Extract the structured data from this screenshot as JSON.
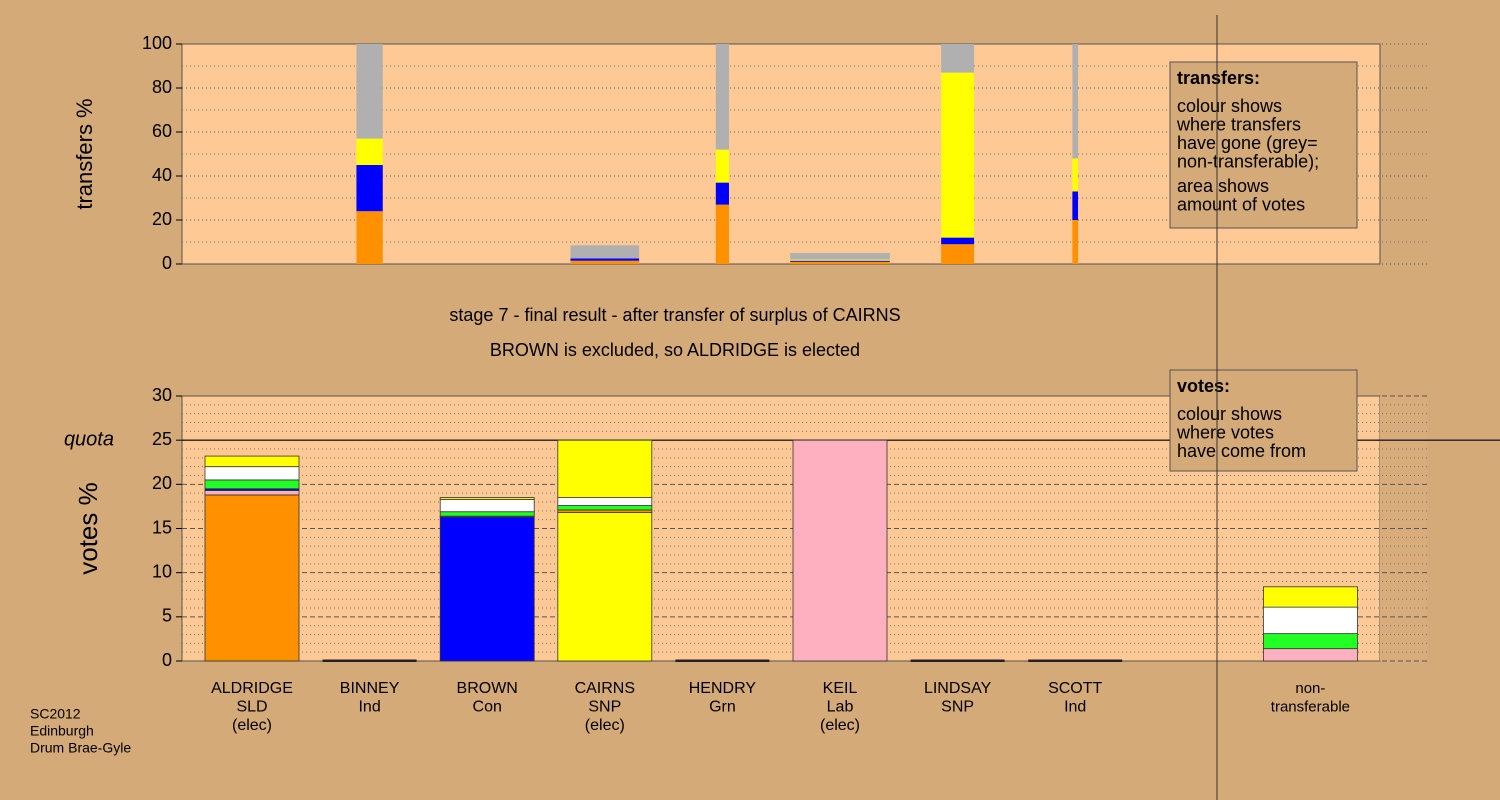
{
  "chart_data": [
    {
      "type": "stacked-bar",
      "ylabel": "transfers %",
      "ylim": [
        0,
        100
      ],
      "yticks": [
        0,
        20,
        40,
        60,
        80,
        100
      ],
      "yminor": [
        10,
        30,
        50,
        70,
        90
      ],
      "amounts": [
        null,
        2.8,
        null,
        7.3,
        1.4,
        10.6,
        3.5,
        0.6,
        null,
        null
      ],
      "series": [
        {
          "color": "#ff9000",
          "values": [
            null,
            24,
            null,
            1.5,
            27,
            1,
            9,
            20,
            null,
            null
          ]
        },
        {
          "color": "#0000ff",
          "values": [
            null,
            21,
            null,
            1,
            10,
            0.5,
            3,
            13,
            null,
            null
          ]
        },
        {
          "color": "#ffff00",
          "values": [
            null,
            12,
            null,
            0,
            15,
            0.5,
            75,
            15,
            null,
            null
          ]
        },
        {
          "color": "#b0b0b0",
          "values": [
            null,
            43,
            null,
            6,
            48,
            3,
            13,
            52,
            null,
            null
          ]
        }
      ],
      "legend": {
        "title": "transfers:",
        "lines": [
          "colour shows",
          "where transfers",
          "have gone (grey=",
          "non-transferable);",
          "area shows",
          "amount of votes"
        ]
      }
    },
    {
      "type": "stacked-bar",
      "ylabel": "votes %",
      "title": "stage 7 - final result - after transfer of surplus of CAIRNS",
      "subtitle": "BROWN is excluded, so ALDRIDGE is elected",
      "ylim": [
        0,
        30
      ],
      "yticks": [
        0,
        5,
        10,
        15,
        20,
        25,
        30
      ],
      "yminor": [
        1,
        2,
        3,
        4,
        6,
        7,
        8,
        9,
        11,
        12,
        13,
        14,
        16,
        17,
        18,
        19,
        21,
        22,
        23,
        24,
        26,
        27,
        28,
        29
      ],
      "quota": 25,
      "quota_label": "quota",
      "categories": [
        [
          "ALDRIDGE",
          "SLD",
          "(elec)"
        ],
        [
          "BINNEY",
          "Ind"
        ],
        [
          "BROWN",
          "Con"
        ],
        [
          "CAIRNS",
          "SNP",
          "(elec)"
        ],
        [
          "HENDRY",
          "Grn"
        ],
        [
          "KEIL",
          "Lab",
          "(elec)"
        ],
        [
          "LINDSAY",
          "SNP"
        ],
        [
          "SCOTT",
          "Ind"
        ],
        null,
        [
          "non-",
          "transferable"
        ]
      ],
      "series": [
        {
          "colors": [
            "#ff9000",
            "#ff9000",
            "#0000ff",
            "#ffff00",
            "#22ff22",
            "#ffb0c0",
            "#ffff00",
            "#ff9000",
            null,
            "#ffb0c0"
          ],
          "values": [
            18.8,
            0,
            16.3,
            16.8,
            0,
            25,
            0,
            0,
            null,
            1.4
          ]
        },
        {
          "color": "#ff9000",
          "values": [
            0,
            0,
            0,
            0.3,
            0,
            0,
            0,
            0,
            null,
            0
          ]
        },
        {
          "color": "#ffb0c0",
          "values": [
            0.5,
            0,
            0.1,
            0,
            0,
            0,
            0,
            0,
            null,
            0
          ]
        },
        {
          "color": "#0000ff",
          "values": [
            0.2,
            0,
            0,
            0,
            0,
            0,
            0,
            0,
            null,
            0
          ]
        },
        {
          "color": "#22ff22",
          "values": [
            1.0,
            0,
            0.5,
            0.5,
            0,
            0,
            0,
            0,
            null,
            1.7
          ]
        },
        {
          "color": "#ffffff",
          "values": [
            1.5,
            0,
            1.4,
            0.9,
            0,
            0,
            0,
            0,
            null,
            3.0
          ]
        },
        {
          "color": "#ffff00",
          "values": [
            1.2,
            0,
            0.2,
            6.5,
            0,
            0,
            0,
            0,
            null,
            2.3
          ]
        }
      ],
      "legend": {
        "title": "votes:",
        "lines": [
          "colour shows",
          "where votes",
          "have come from"
        ]
      }
    }
  ],
  "footer": [
    "SC2012",
    "Edinburgh",
    "Drum Brae-Gyle"
  ]
}
